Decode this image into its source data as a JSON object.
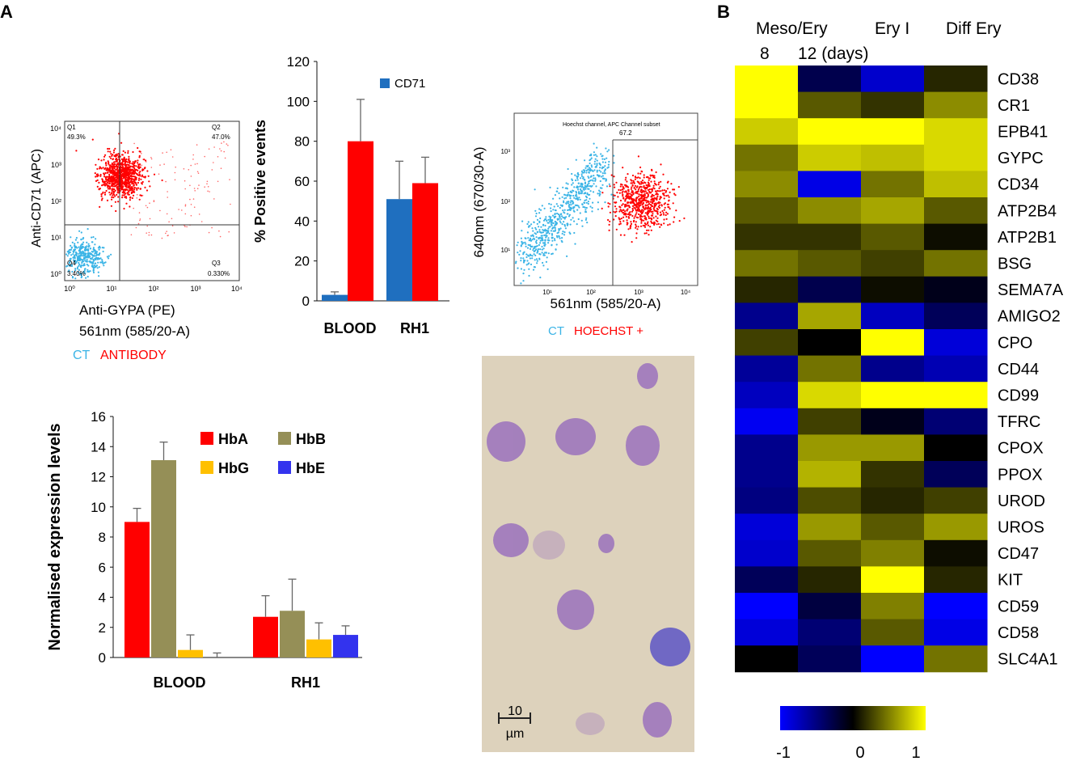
{
  "panel_labels": {
    "a": "A",
    "b": "B"
  },
  "colors": {
    "ct": "#3bb4e6",
    "red": "#ff0000",
    "blue_bar": "#1f6fbf",
    "hba": "#ff0000",
    "hbb": "#958f57",
    "hbg": "#ffc000",
    "hbe": "#3333ee",
    "stain_cell": "#9b72bd",
    "slide_bg": "#ddd2bc"
  },
  "flow1": {
    "y_label": "Anti-CD71 (APC)",
    "x_label": "Anti-GYPA (PE)",
    "x_label2": "561nm (585/20-A)",
    "quadrants": {
      "q1": "Q1",
      "q1_val": "49.3%",
      "q2": "Q2",
      "q2_val": "47.0%",
      "q3": "Q3",
      "q3_val": "0.330%",
      "q4": "Q4",
      "q4_val": "3.40%"
    },
    "ticks": [
      "10⁰",
      "10¹",
      "10²",
      "10³",
      "10⁴"
    ],
    "legend_ct": "CT",
    "legend_other": "ANTIBODY"
  },
  "flow2": {
    "y_label": "640nm (670/30-A)",
    "x_label": "561nm (585/20-A)",
    "gate_label": "Hoechst channel, APC Channel subset",
    "gate_value": "67.2",
    "yticks": [
      "10³",
      "10²",
      "10¹"
    ],
    "xticks": [
      "10¹",
      "10²",
      "10³",
      "10⁴"
    ],
    "legend_ct": "CT",
    "legend_other": "HOECHST +"
  },
  "micrograph": {
    "scale_value": "10",
    "scale_unit": "µm"
  },
  "chart_data": [
    {
      "type": "bar",
      "title": "",
      "ylabel": "% Positive events",
      "xlabel": "",
      "ylim": [
        0,
        120
      ],
      "yticks": [
        0,
        20,
        40,
        60,
        80,
        100,
        120
      ],
      "categories": [
        "BLOOD",
        "RH1"
      ],
      "legend": [
        "CD71"
      ],
      "series": [
        {
          "name": "CD71",
          "color": "#1f6fbf",
          "values": [
            3,
            51
          ],
          "errors": [
            1.5,
            19
          ]
        },
        {
          "name": "",
          "color": "#ff0000",
          "values": [
            80,
            59
          ],
          "errors": [
            21,
            13
          ]
        }
      ]
    },
    {
      "type": "bar",
      "title": "",
      "ylabel": "Normalised expression levels",
      "xlabel": "",
      "ylim": [
        0,
        16
      ],
      "yticks": [
        0,
        2,
        4,
        6,
        8,
        10,
        12,
        14,
        16
      ],
      "categories": [
        "BLOOD",
        "RH1"
      ],
      "legend": [
        "HbA",
        "HbB",
        "HbG",
        "HbE"
      ],
      "series": [
        {
          "name": "HbA",
          "color": "#ff0000",
          "values": [
            9.0,
            2.7
          ],
          "errors": [
            0.9,
            1.4
          ]
        },
        {
          "name": "HbB",
          "color": "#958f57",
          "values": [
            13.1,
            3.1
          ],
          "errors": [
            1.2,
            2.1
          ]
        },
        {
          "name": "HbG",
          "color": "#ffc000",
          "values": [
            0.5,
            1.2
          ],
          "errors": [
            1.0,
            1.1
          ]
        },
        {
          "name": "HbE",
          "color": "#3333ee",
          "values": [
            0.0,
            1.5
          ],
          "errors": [
            0.3,
            0.6
          ]
        }
      ]
    },
    {
      "type": "heatmap",
      "title": "",
      "column_header_top": [
        "Meso/Ery",
        "Ery I",
        "Diff Ery"
      ],
      "column_header_sub": [
        "8",
        "12 (days)"
      ],
      "columns": [
        "Meso/Ery 8",
        "Meso/Ery 12",
        "Ery I",
        "Diff Ery"
      ],
      "rows": [
        "CD38",
        "CR1",
        "EPB41",
        "GYPC",
        "CD34",
        "ATP2B4",
        "ATP2B1",
        "BSG",
        "SEMA7A",
        "AMIGO2",
        "CPO",
        "CD44",
        "CD99",
        "TFRC",
        "CPOX",
        "PPOX",
        "UROD",
        "UROS",
        "CD47",
        "KIT",
        "CD59",
        "CD58",
        "SLC4A1"
      ],
      "values": [
        [
          1.0,
          -0.3,
          -0.8,
          0.15
        ],
        [
          1.0,
          0.35,
          0.2,
          0.55
        ],
        [
          0.8,
          1.0,
          1.0,
          0.85
        ],
        [
          0.45,
          0.8,
          0.75,
          0.85
        ],
        [
          0.55,
          -0.9,
          0.45,
          0.75
        ],
        [
          0.35,
          0.55,
          0.65,
          0.35
        ],
        [
          0.2,
          0.2,
          0.35,
          0.05
        ],
        [
          0.45,
          0.35,
          0.25,
          0.45
        ],
        [
          0.15,
          -0.3,
          0.05,
          -0.1
        ],
        [
          -0.55,
          0.65,
          -0.75,
          -0.35
        ],
        [
          0.25,
          0.0,
          1.0,
          -0.85
        ],
        [
          -0.6,
          0.45,
          -0.55,
          -0.7
        ],
        [
          -0.75,
          0.85,
          1.0,
          1.0
        ],
        [
          -0.95,
          0.25,
          -0.1,
          -0.45
        ],
        [
          -0.55,
          0.6,
          0.6,
          0.0
        ],
        [
          -0.55,
          0.7,
          0.2,
          -0.35
        ],
        [
          -0.5,
          0.3,
          0.15,
          0.25
        ],
        [
          -0.85,
          0.6,
          0.35,
          0.6
        ],
        [
          -0.8,
          0.35,
          0.5,
          0.05
        ],
        [
          -0.35,
          0.15,
          1.0,
          0.15
        ],
        [
          -1.0,
          -0.25,
          0.5,
          -1.0
        ],
        [
          -0.85,
          -0.45,
          0.35,
          -0.9
        ],
        [
          0.0,
          -0.35,
          -1.0,
          0.45
        ]
      ],
      "colorbar": {
        "min": -1,
        "max": 1,
        "ticks": [
          "-1",
          "0",
          "1"
        ],
        "colors": [
          "#0000ff",
          "#000000",
          "#ffff00"
        ]
      }
    }
  ]
}
